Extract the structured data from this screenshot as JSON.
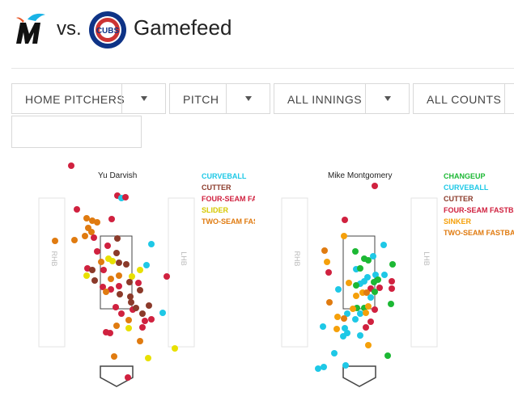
{
  "header": {
    "vs": "vs.",
    "title": "Gamefeed",
    "away_logo_icon": "marlins-logo-icon",
    "home_logo_icon": "cubs-logo-icon",
    "home_logo_text": "CUBS"
  },
  "filters": [
    {
      "label": "HOME PITCHERS"
    },
    {
      "label": "PITCH"
    },
    {
      "label": "ALL INNINGS"
    },
    {
      "label": "ALL COUNTS"
    }
  ],
  "colors": {
    "CURVEBALL": "#1ec8e6",
    "CUTTER": "#8b3a2a",
    "FOUR-SEAM FASTBALL": "#d0213f",
    "SLIDER": "#e8e000",
    "TWO-SEAM FASTBALL": "#e07b10",
    "CHANGEUP": "#1cb834",
    "SINKER": "#f5a00a"
  },
  "panels": [
    {
      "pitcher": "Yu Darvish",
      "rhb_label": "RHB",
      "lhb_label": "LHB",
      "legend": [
        {
          "label": "CURVEBALL",
          "color": "#1ec8e6"
        },
        {
          "label": "CUTTER",
          "color": "#8b3a2a"
        },
        {
          "label": "FOUR-SEAM FASTBALL",
          "color": "#d0213f"
        },
        {
          "label": "SLIDER",
          "color": "#e8e000"
        },
        {
          "label": "TWO-SEAM FASTBALL",
          "color": "#e07b10"
        }
      ]
    },
    {
      "pitcher": "Mike Montgomery",
      "rhb_label": "RHB",
      "lhb_label": "LHB",
      "legend": [
        {
          "label": "CHANGEUP",
          "color": "#1cb834"
        },
        {
          "label": "CURVEBALL",
          "color": "#1ec8e6"
        },
        {
          "label": "CUTTER",
          "color": "#8b3a2a"
        },
        {
          "label": "FOUR-SEAM FASTBALL",
          "color": "#d0213f"
        },
        {
          "label": "SINKER",
          "color": "#f5a00a"
        },
        {
          "label": "TWO-SEAM FASTBALL",
          "color": "#e07b10"
        }
      ]
    }
  ]
}
